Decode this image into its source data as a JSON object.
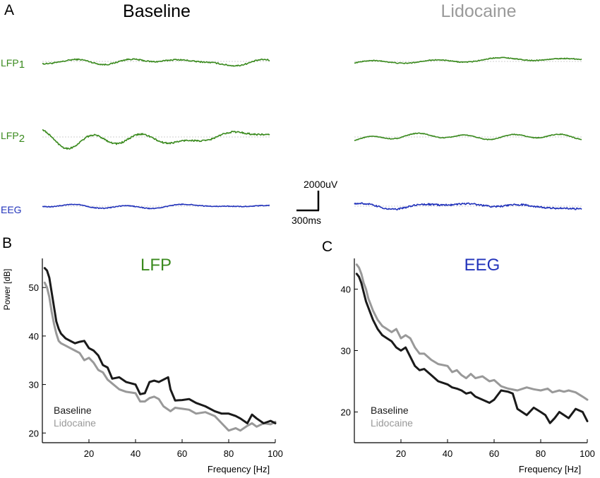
{
  "colors": {
    "lfp": "#3a8a1e",
    "eeg": "#2233bb",
    "baseline": "#1a1a1a",
    "lidocaine": "#999999",
    "lidocaine_title": "#9a9a9a",
    "axis": "#000000"
  },
  "panel_a": {
    "label": "A",
    "baseline_title": "Baseline",
    "lidocaine_title": "Lidocaine",
    "row_labels": {
      "lfp1_base": "LFP",
      "lfp1_sub": "1",
      "lfp2_base": "LFP",
      "lfp2_sub": "2",
      "eeg": "EEG"
    },
    "scale_bar": {
      "amplitude": "2000uV",
      "time": "300ms"
    },
    "traces": [
      {
        "name": "LFP1 baseline",
        "row": 0,
        "column": "baseline",
        "amplitude_uV": 1500
      },
      {
        "name": "LFP1 lidocaine",
        "row": 0,
        "column": "lidocaine",
        "amplitude_uV": 900
      },
      {
        "name": "LFP2 baseline",
        "row": 1,
        "column": "baseline",
        "amplitude_uV": 2200
      },
      {
        "name": "LFP2 lidocaine",
        "row": 1,
        "column": "lidocaine",
        "amplitude_uV": 900
      },
      {
        "name": "EEG baseline",
        "row": 2,
        "column": "baseline",
        "amplitude_uV": 500
      },
      {
        "name": "EEG lidocaine",
        "row": 2,
        "column": "lidocaine",
        "amplitude_uV": 800
      }
    ]
  },
  "chart_data": [
    {
      "panel": "B",
      "type": "line",
      "title": "LFP",
      "xlabel": "Frequency [Hz]",
      "ylabel": "Power [dB]",
      "xlim": [
        0,
        100
      ],
      "ylim": [
        18,
        56
      ],
      "xticks": [
        20,
        40,
        60,
        80,
        100
      ],
      "yticks": [
        20,
        30,
        40,
        50
      ],
      "legend": [
        "Baseline",
        "Lidocaine"
      ],
      "legend_position": "bottom-left",
      "series": [
        {
          "name": "Baseline",
          "x": [
            1,
            2,
            3,
            4,
            5,
            6,
            7,
            8,
            10,
            12,
            14,
            16,
            18,
            20,
            22,
            24,
            26,
            28,
            30,
            33,
            36,
            40,
            42,
            44,
            46,
            48,
            50,
            52,
            54,
            55,
            57,
            60,
            63,
            66,
            70,
            74,
            77,
            80,
            83,
            85,
            88,
            90,
            92,
            95,
            98,
            100
          ],
          "y": [
            54,
            53.5,
            52,
            49,
            46,
            43,
            41.5,
            40.5,
            39.5,
            39,
            38.5,
            38.8,
            39,
            37.5,
            37,
            36,
            34,
            33.5,
            31.2,
            31.5,
            30.5,
            30,
            28,
            28.2,
            30.5,
            30.8,
            30.5,
            31,
            31.5,
            29,
            26.7,
            26.8,
            27,
            26.2,
            25.5,
            24.5,
            24,
            24,
            23.5,
            23,
            22,
            23.8,
            23,
            22,
            22.5,
            22
          ]
        },
        {
          "name": "Lidocaine",
          "x": [
            1,
            2,
            3,
            4,
            5,
            6,
            7,
            8,
            10,
            12,
            14,
            16,
            18,
            20,
            22,
            24,
            26,
            28,
            30,
            33,
            36,
            40,
            42,
            44,
            46,
            48,
            50,
            52,
            55,
            57,
            60,
            63,
            66,
            70,
            74,
            77,
            80,
            83,
            85,
            88,
            90,
            92,
            95,
            98,
            100
          ],
          "y": [
            51,
            50,
            48,
            45,
            42.5,
            40.5,
            39,
            38.5,
            38,
            37.5,
            37,
            36.5,
            35,
            35.5,
            34.5,
            33,
            32.5,
            31,
            30.2,
            29,
            28.5,
            28.2,
            26.5,
            26.5,
            27.2,
            27.5,
            27,
            25.5,
            24.5,
            25.2,
            25,
            24.8,
            24,
            24.3,
            23.5,
            22,
            20.5,
            21,
            20.5,
            21.5,
            22,
            21.3,
            22,
            21.8,
            22.3
          ]
        }
      ]
    },
    {
      "panel": "C",
      "type": "line",
      "title": "EEG",
      "xlabel": "Frequency [Hz]",
      "ylabel": "",
      "xlim": [
        0,
        100
      ],
      "ylim": [
        15,
        45
      ],
      "xticks": [
        20,
        40,
        60,
        80,
        100
      ],
      "yticks": [
        20,
        30,
        40
      ],
      "legend": [
        "Baseline",
        "Lidocaine"
      ],
      "legend_position": "bottom-left",
      "series": [
        {
          "name": "Baseline",
          "x": [
            1,
            2,
            3,
            4,
            5,
            6,
            7,
            8,
            10,
            12,
            14,
            16,
            18,
            20,
            22,
            24,
            26,
            28,
            30,
            33,
            36,
            40,
            42,
            44,
            46,
            48,
            50,
            52,
            55,
            58,
            60,
            63,
            66,
            68,
            70,
            72,
            74,
            77,
            80,
            82,
            84,
            86,
            88,
            90,
            92,
            95,
            98,
            100
          ],
          "y": [
            42.5,
            42,
            41,
            39.5,
            38,
            37,
            36,
            35,
            33.5,
            32.5,
            32,
            31.5,
            30.5,
            30,
            30.5,
            29,
            27.5,
            26.8,
            27,
            26,
            25,
            24.5,
            24,
            23.8,
            23.5,
            23,
            23.2,
            22.5,
            22,
            21.5,
            22,
            23.5,
            23.3,
            23,
            20.5,
            20,
            19.5,
            20.7,
            20,
            19.5,
            18.2,
            19,
            20,
            19.5,
            19,
            20.5,
            20,
            18.5
          ]
        },
        {
          "name": "Lidocaine",
          "x": [
            1,
            2,
            3,
            4,
            5,
            6,
            7,
            8,
            10,
            12,
            14,
            16,
            18,
            20,
            22,
            24,
            26,
            28,
            30,
            33,
            36,
            40,
            42,
            44,
            46,
            48,
            50,
            52,
            55,
            58,
            60,
            63,
            66,
            70,
            74,
            77,
            80,
            83,
            85,
            88,
            90,
            92,
            95,
            98,
            100
          ],
          "y": [
            44,
            43.5,
            42.5,
            41,
            40,
            38.5,
            37.5,
            36.5,
            35,
            34,
            33.5,
            33,
            33.5,
            32,
            32.5,
            32,
            30.5,
            29.5,
            29.5,
            28.5,
            27.8,
            27.5,
            26.5,
            26.8,
            26,
            25.5,
            26.2,
            25.5,
            25.8,
            25,
            25.2,
            24.2,
            23.8,
            23.5,
            24,
            23.7,
            23.5,
            23.8,
            23.2,
            23.5,
            23.3,
            23.5,
            23.2,
            22.5,
            22
          ]
        }
      ]
    }
  ]
}
